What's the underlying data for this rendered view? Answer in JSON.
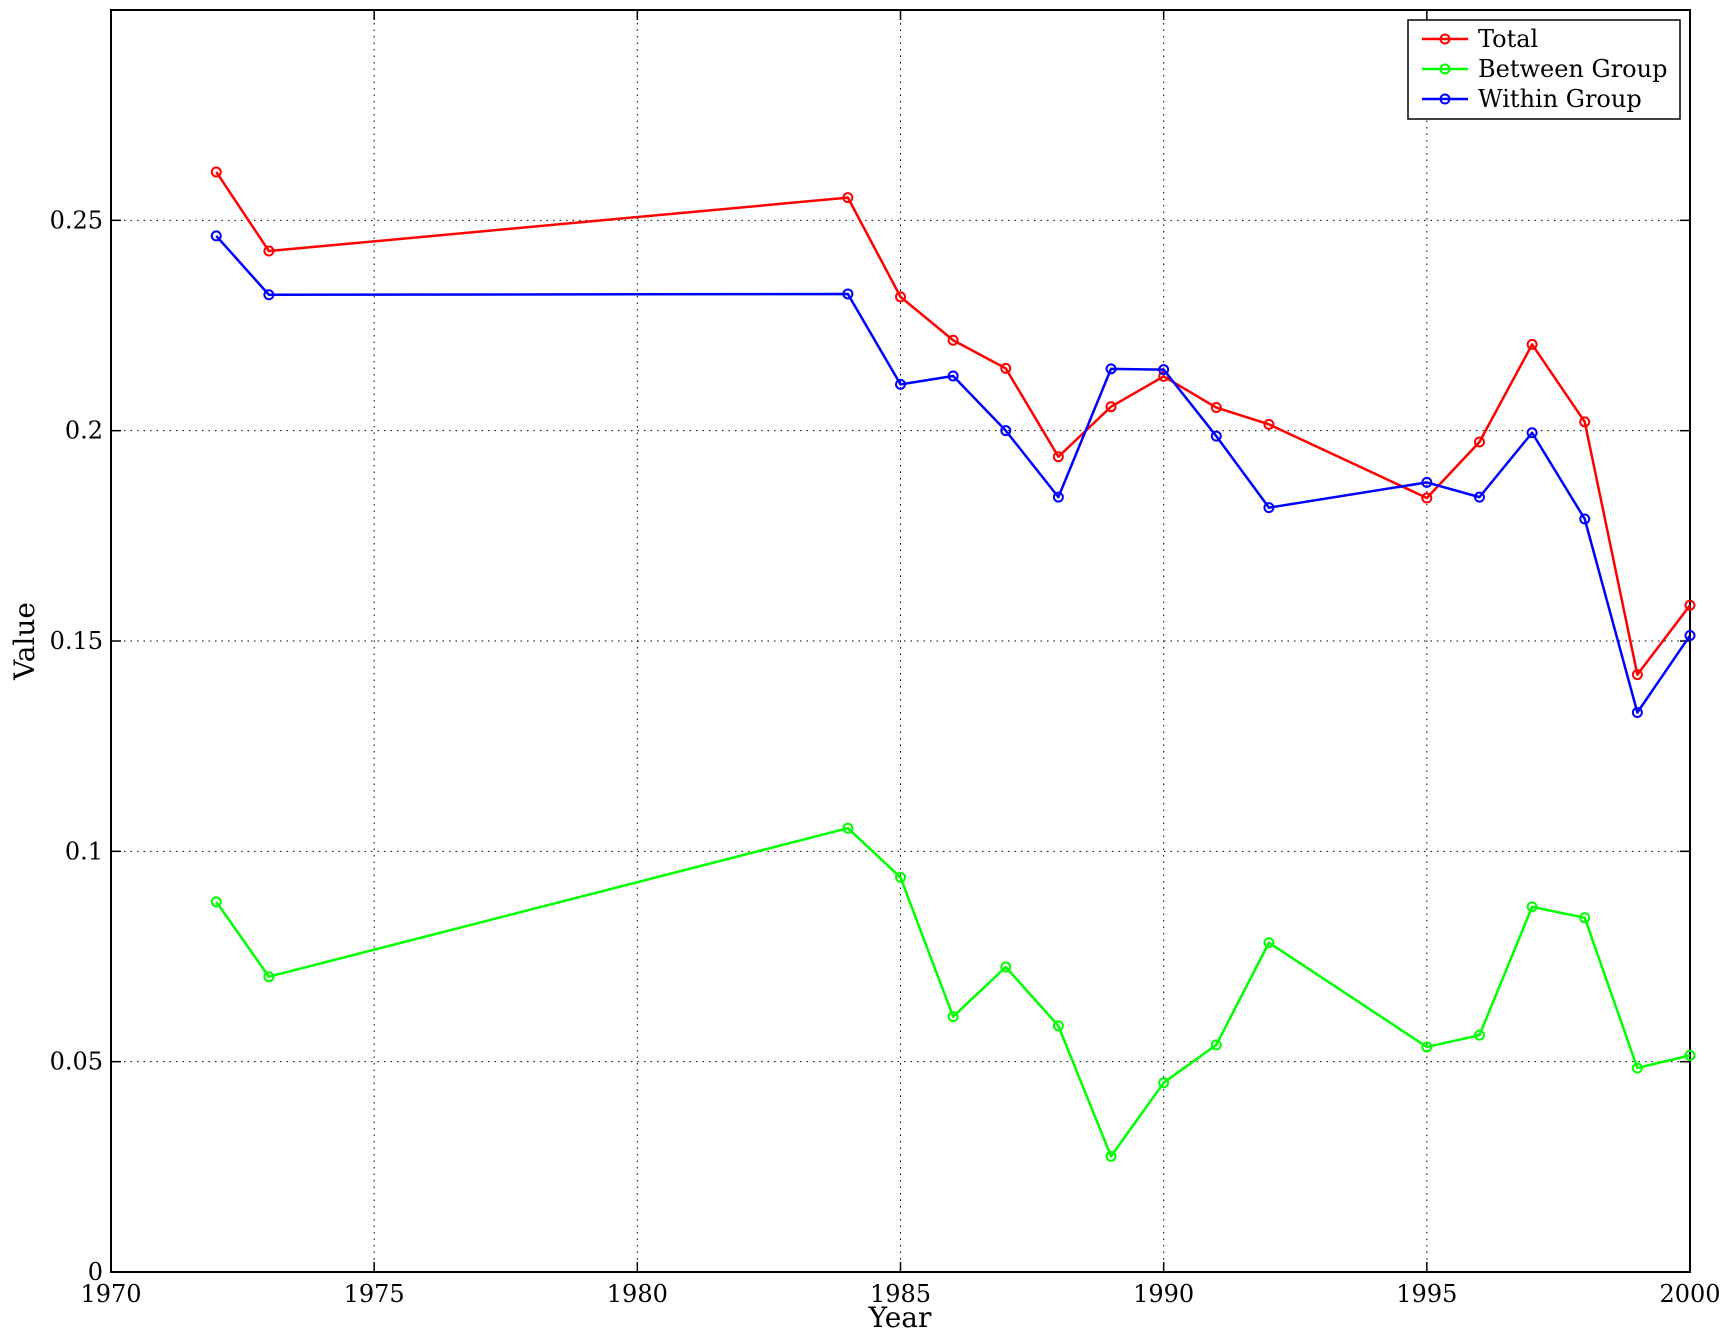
{
  "chart_data": {
    "type": "line",
    "title": "",
    "xlabel": "Year",
    "ylabel": "Value",
    "xlim": [
      1970,
      2000
    ],
    "ylim": [
      0,
      0.3
    ],
    "xticks": [
      "1970",
      "1975",
      "1980",
      "1985",
      "1990",
      "1995",
      "2000"
    ],
    "yticks": [
      "0",
      "0.05",
      "0.1",
      "0.15",
      "0.2",
      "0.25"
    ],
    "xtick_values": [
      1970,
      1975,
      1980,
      1985,
      1990,
      1995,
      2000
    ],
    "ytick_values": [
      0,
      0.05,
      0.1,
      0.15,
      0.2,
      0.25
    ],
    "grid": true,
    "legend_position": "top-right",
    "x": [
      1972,
      1973,
      1984,
      1985,
      1986,
      1987,
      1988,
      1989,
      1990,
      1991,
      1992,
      1995,
      1996,
      1997,
      1998,
      1999,
      2000
    ],
    "series": [
      {
        "name": "Total",
        "color": "#ff0000",
        "values": [
          0.2615,
          0.2427,
          0.2554,
          0.2318,
          0.2215,
          0.2148,
          0.1938,
          0.2057,
          0.2129,
          0.2055,
          0.2015,
          0.184,
          0.1973,
          0.2205,
          0.2021,
          0.142,
          0.1585
        ]
      },
      {
        "name": "Between Group",
        "color": "#00ff00",
        "values": [
          0.088,
          0.0702,
          0.1055,
          0.0938,
          0.0607,
          0.0725,
          0.0585,
          0.0275,
          0.045,
          0.054,
          0.0783,
          0.0535,
          0.0563,
          0.0868,
          0.0842,
          0.0485,
          0.0515
        ]
      },
      {
        "name": "Within Group",
        "color": "#0000ff",
        "values": [
          0.2463,
          0.2323,
          0.2325,
          0.211,
          0.213,
          0.2,
          0.1842,
          0.2147,
          0.2145,
          0.1987,
          0.1817,
          0.1877,
          0.1842,
          0.1995,
          0.179,
          0.133,
          0.1513
        ]
      }
    ]
  }
}
